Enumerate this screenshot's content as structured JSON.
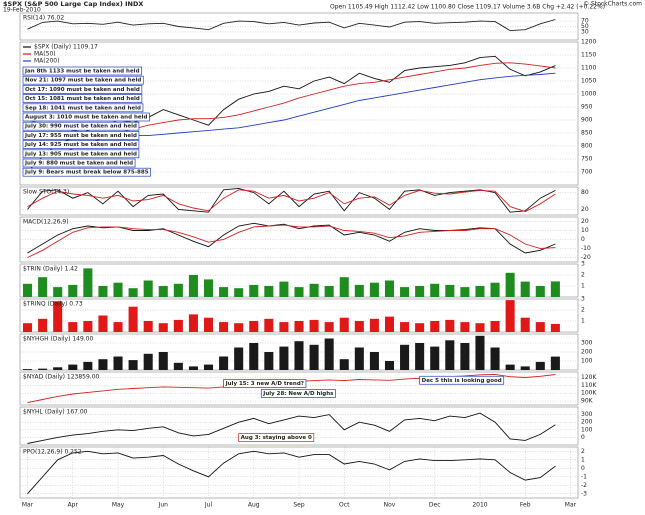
{
  "header": {
    "symbol": "$SPX (S&P 500 Large Cap Index) INDX",
    "date": "19-Feb-2010",
    "quote": "Open 1105.49  High 1112.42  Low 1100.80  Close 1109.17  Volume 3.6B  Chg +2.42 (+0.22%)",
    "source": "© StockCharts.com"
  },
  "chart_data": [
    {
      "type": "line",
      "title": "RSI(14) 76.02",
      "ylim": [
        0,
        100
      ],
      "yticks": [
        30,
        50,
        70
      ],
      "series": [
        {
          "color": "#222222",
          "values": [
            40,
            65,
            70,
            60,
            62,
            58,
            66,
            55,
            60,
            62,
            50,
            45,
            38,
            62,
            70,
            68,
            60,
            65,
            55,
            63,
            66,
            45,
            62,
            55,
            48,
            66,
            68,
            62,
            64,
            66,
            70,
            68,
            35,
            38,
            60,
            76.02,
            null
          ]
        }
      ]
    },
    {
      "type": "line",
      "ylim": [
        650,
        1200
      ],
      "yticks": [
        700,
        750,
        800,
        850,
        900,
        950,
        1000,
        1050,
        1100,
        1150,
        1200
      ],
      "series": [
        {
          "name": "$SPX (Daily) 1109.17",
          "color": "#111111",
          "values": [
            700,
            760,
            810,
            830,
            860,
            870,
            900,
            890,
            910,
            940,
            920,
            900,
            880,
            940,
            980,
            1000,
            1010,
            1030,
            1020,
            1050,
            1065,
            1040,
            1080,
            1060,
            1045,
            1090,
            1100,
            1105,
            1110,
            1120,
            1140,
            1145,
            1095,
            1070,
            1085,
            1109.17,
            null
          ]
        },
        {
          "name": "MA(50)",
          "color": "#d62020",
          "values": [
            760,
            760,
            770,
            790,
            810,
            830,
            850,
            865,
            880,
            890,
            900,
            905,
            905,
            910,
            920,
            935,
            950,
            965,
            985,
            1000,
            1015,
            1030,
            1040,
            1045,
            1055,
            1065,
            1075,
            1085,
            1095,
            1100,
            1110,
            1118,
            1120,
            1115,
            1108,
            1100,
            null
          ]
        },
        {
          "name": "MA(200)",
          "color": "#1f3fbf",
          "values": [
            900,
            885,
            870,
            860,
            850,
            845,
            840,
            840,
            840,
            845,
            850,
            855,
            860,
            865,
            870,
            880,
            890,
            900,
            915,
            930,
            945,
            960,
            975,
            985,
            995,
            1005,
            1015,
            1025,
            1035,
            1045,
            1055,
            1062,
            1068,
            1072,
            1075,
            1080,
            null
          ]
        }
      ],
      "annotations": [
        "Jan 8th 1133 must be taken and held",
        "Nov 21: 1097 must be taken and held",
        "Oct 17: 1090 must be taken and held",
        "Oct 15: 1081 must be taken and held",
        "Sep 18: 1041 must be taken and held",
        "August 3: 1010 must be taken and held",
        "July 30: 990 must be taken and held",
        "July 17: 955 must be taken and held",
        "July 14: 925 must be taken and held",
        "July 13: 905 must be taken and held",
        "July 9: 880 must be taken and held",
        "July 9: Bears must break below 875-885"
      ]
    },
    {
      "type": "line",
      "title": "Slow STO(14,3)",
      "ylim": [
        0,
        100
      ],
      "yticks": [
        20,
        80
      ],
      "series": [
        {
          "color": "#111111",
          "values": [
            20,
            85,
            90,
            60,
            80,
            40,
            85,
            30,
            70,
            75,
            20,
            15,
            10,
            90,
            95,
            80,
            40,
            85,
            30,
            75,
            85,
            15,
            80,
            60,
            20,
            85,
            90,
            70,
            80,
            85,
            90,
            80,
            10,
            15,
            60,
            88,
            null
          ]
        },
        {
          "color": "#d62020",
          "values": [
            30,
            60,
            85,
            75,
            70,
            60,
            70,
            50,
            55,
            70,
            40,
            25,
            15,
            60,
            90,
            85,
            60,
            70,
            50,
            60,
            80,
            40,
            60,
            65,
            35,
            70,
            88,
            78,
            75,
            82,
            88,
            85,
            30,
            12,
            40,
            75,
            null
          ]
        }
      ]
    },
    {
      "type": "line",
      "title": "MACD(12,26,9)",
      "ylim": [
        -25,
        25
      ],
      "yticks": [
        -20,
        -10,
        0,
        10,
        20
      ],
      "series": [
        {
          "color": "#111111",
          "values": [
            -15,
            -5,
            5,
            12,
            15,
            13,
            14,
            10,
            10,
            12,
            5,
            -2,
            -8,
            5,
            15,
            18,
            15,
            17,
            12,
            15,
            16,
            5,
            8,
            5,
            -2,
            8,
            12,
            10,
            10,
            11,
            13,
            12,
            -5,
            -15,
            -12,
            -5,
            null
          ]
        },
        {
          "color": "#d62020",
          "values": [
            -20,
            -12,
            -2,
            8,
            13,
            14,
            14,
            12,
            11,
            11,
            8,
            3,
            -3,
            0,
            8,
            14,
            15,
            16,
            14,
            14,
            15,
            10,
            9,
            7,
            2,
            4,
            8,
            9,
            10,
            10,
            12,
            12,
            5,
            -5,
            -10,
            -9,
            null
          ]
        }
      ]
    },
    {
      "type": "bar",
      "title": "$TRIN (Daily) 1.42",
      "ylim": [
        0,
        3
      ],
      "yticks": [
        1,
        2,
        3
      ],
      "color": "#1e8c1e",
      "values": [
        1.2,
        1.8,
        0.9,
        1.1,
        2.6,
        1.0,
        1.3,
        0.8,
        1.5,
        1.0,
        1.2,
        2.0,
        1.6,
        0.9,
        0.8,
        1.1,
        1.0,
        1.4,
        0.9,
        1.2,
        1.0,
        1.8,
        1.1,
        1.3,
        1.5,
        0.9,
        1.0,
        1.2,
        1.1,
        0.9,
        1.0,
        1.3,
        2.2,
        1.4,
        1.0,
        1.42,
        null
      ]
    },
    {
      "type": "bar",
      "title": "$TRINQ (Daily) 0.73",
      "ylim": [
        0,
        3
      ],
      "yticks": [
        1,
        2,
        3
      ],
      "color": "#e01818",
      "values": [
        0.8,
        1.2,
        2.8,
        0.9,
        1.0,
        1.5,
        0.9,
        2.3,
        1.0,
        0.8,
        1.1,
        1.6,
        1.3,
        0.9,
        0.8,
        1.0,
        1.2,
        0.9,
        1.0,
        1.1,
        0.9,
        1.3,
        1.0,
        1.2,
        1.4,
        0.9,
        0.8,
        1.0,
        1.1,
        0.9,
        0.8,
        1.0,
        2.9,
        1.3,
        0.9,
        0.73,
        null
      ]
    },
    {
      "type": "bar",
      "title": "$NYHGH (Daily) 149.00",
      "ylim": [
        0,
        400
      ],
      "yticks": [
        100,
        200,
        300
      ],
      "color": "#1a1a1a",
      "values": [
        10,
        15,
        30,
        60,
        90,
        120,
        150,
        110,
        180,
        200,
        80,
        40,
        60,
        150,
        250,
        300,
        200,
        260,
        320,
        280,
        350,
        120,
        250,
        200,
        100,
        280,
        300,
        260,
        330,
        300,
        380,
        250,
        60,
        40,
        90,
        149,
        null
      ]
    },
    {
      "type": "line",
      "title": "$NYAD (Daily) 123859.00",
      "ylim": [
        85000,
        127000
      ],
      "yticks": [
        {
          "value": 90000,
          "label": "90K"
        },
        {
          "value": 100000,
          "label": "100K"
        },
        {
          "value": 110000,
          "label": "110K"
        },
        {
          "value": 120000,
          "label": "120K"
        }
      ],
      "series": [
        {
          "color": "#d62020",
          "values": [
            88000,
            92000,
            96000,
            99000,
            101000,
            103000,
            105000,
            106000,
            107000,
            108000,
            107500,
            107000,
            106500,
            108000,
            110000,
            112000,
            113000,
            114000,
            115000,
            116000,
            117000,
            116000,
            117500,
            117000,
            116500,
            118000,
            119000,
            120000,
            121000,
            122000,
            123500,
            124000,
            121000,
            120000,
            121500,
            123859,
            null
          ]
        }
      ],
      "annotations": [
        "July 15: 3 new A/D trend?",
        "July 28: New A/D highs",
        "Dec 5 this is looking good"
      ]
    },
    {
      "type": "line",
      "title": "$NYHL (Daily) 167.00",
      "ylim": [
        -100,
        400
      ],
      "yticks": [
        0,
        100,
        200,
        300
      ],
      "series": [
        {
          "color": "#111111",
          "values": [
            -80,
            -40,
            0,
            30,
            50,
            80,
            100,
            90,
            120,
            140,
            60,
            20,
            40,
            120,
            200,
            250,
            180,
            230,
            280,
            260,
            300,
            100,
            200,
            160,
            80,
            230,
            250,
            220,
            280,
            260,
            320,
            200,
            -20,
            -40,
            40,
            167,
            null
          ]
        }
      ],
      "annotations": [
        "Aug 3: staying above 0"
      ]
    },
    {
      "type": "line",
      "title": "PPO(12,26,9) 0.252",
      "ylim": [
        -3.5,
        2.5
      ],
      "yticks": [
        -3,
        -2,
        -1,
        0,
        1,
        2
      ],
      "series": [
        {
          "color": "#111111",
          "values": [
            -3,
            -1,
            1,
            1.8,
            2,
            1.7,
            1.8,
            1.2,
            1.3,
            1.5,
            0.5,
            -0.3,
            -1,
            0.6,
            1.7,
            2,
            1.7,
            1.8,
            1.3,
            1.6,
            1.6,
            0.5,
            0.8,
            0.5,
            -0.2,
            0.8,
            1.1,
            0.9,
            0.9,
            1,
            1.1,
            1,
            -0.5,
            -1.4,
            -1.1,
            0.252,
            null
          ]
        }
      ],
      "categories": [
        "Mar",
        null,
        null,
        "Apr",
        null,
        null,
        "May",
        null,
        null,
        "Jun",
        null,
        null,
        "Jul",
        null,
        null,
        "Aug",
        null,
        null,
        "Sep",
        null,
        null,
        "Oct",
        null,
        null,
        "Nov",
        null,
        null,
        "Dec",
        null,
        null,
        "2010",
        null,
        null,
        "Feb",
        null,
        null,
        "Mar"
      ]
    }
  ]
}
